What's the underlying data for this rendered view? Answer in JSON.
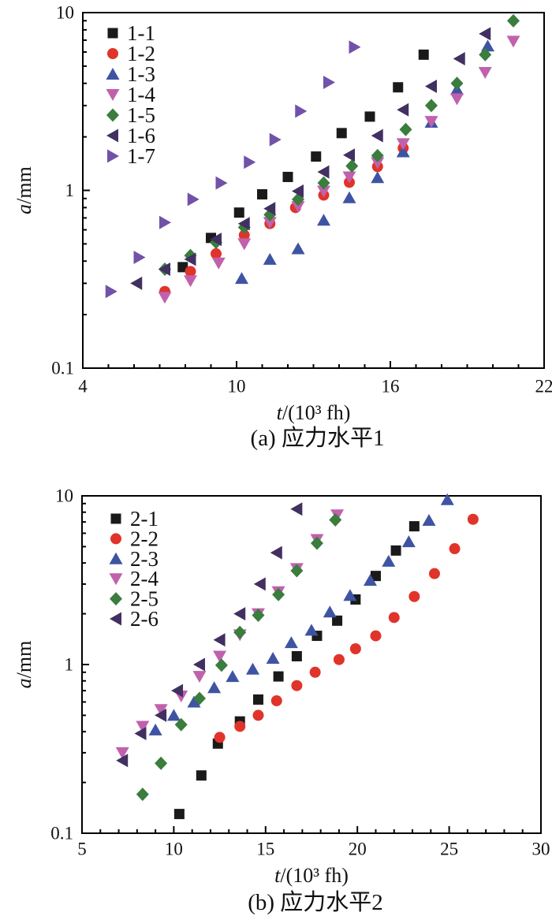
{
  "figure": {
    "background": "#ffffff",
    "axis_color": "#000000",
    "text_color": "#111111"
  },
  "chart_data": [
    {
      "type": "scatter",
      "panel": "a",
      "title": "(a) 应力水平1",
      "xlabel": "t/(10³ fh)",
      "xlabel_parts": [
        [
          "t",
          true
        ],
        [
          "/(10³ fh)",
          false
        ]
      ],
      "ylabel": "a/mm",
      "ylabel_parts": [
        [
          "a",
          true
        ],
        [
          "/mm",
          false
        ]
      ],
      "xscale": "linear",
      "yscale": "log",
      "xlim": [
        4,
        22
      ],
      "ylim": [
        0.1,
        10
      ],
      "x_major_ticks": [
        4,
        10,
        16,
        22
      ],
      "x_minor_step": 1,
      "y_major_ticks": [
        0.1,
        1,
        10
      ],
      "y_tick_labels": [
        "0.1",
        "1",
        "10"
      ],
      "grid": false,
      "legend_position": "top-left",
      "series": [
        {
          "name": "1-1",
          "marker": "square",
          "color": "#1a1a1a",
          "points": [
            [
              7.9,
              0.37
            ],
            [
              9.0,
              0.54
            ],
            [
              10.1,
              0.75
            ],
            [
              11.0,
              0.95
            ],
            [
              12.0,
              1.19
            ],
            [
              13.1,
              1.55
            ],
            [
              14.1,
              2.1
            ],
            [
              15.2,
              2.6
            ],
            [
              16.3,
              3.8
            ],
            [
              17.3,
              5.8
            ]
          ]
        },
        {
          "name": "1-2",
          "marker": "circle",
          "color": "#e0342b",
          "points": [
            [
              7.2,
              0.27
            ],
            [
              8.2,
              0.35
            ],
            [
              9.2,
              0.44
            ],
            [
              10.3,
              0.56
            ],
            [
              11.3,
              0.65
            ],
            [
              12.3,
              0.8
            ],
            [
              13.4,
              0.94
            ],
            [
              14.4,
              1.11
            ],
            [
              15.5,
              1.36
            ],
            [
              16.5,
              1.73
            ]
          ]
        },
        {
          "name": "1-3",
          "marker": "triangle-up",
          "color": "#3e54a3",
          "points": [
            [
              10.2,
              0.32
            ],
            [
              11.3,
              0.41
            ],
            [
              12.4,
              0.47
            ],
            [
              13.4,
              0.68
            ],
            [
              14.4,
              0.91
            ],
            [
              15.5,
              1.18
            ],
            [
              16.5,
              1.65
            ],
            [
              17.6,
              2.42
            ],
            [
              18.6,
              3.7
            ],
            [
              19.8,
              6.5
            ]
          ]
        },
        {
          "name": "1-4",
          "marker": "triangle-down",
          "color": "#c161ad",
          "points": [
            [
              7.2,
              0.25
            ],
            [
              8.2,
              0.31
            ],
            [
              9.3,
              0.39
            ],
            [
              10.3,
              0.5
            ],
            [
              11.3,
              0.66
            ],
            [
              12.4,
              0.81
            ],
            [
              13.4,
              0.99
            ],
            [
              14.4,
              1.19
            ],
            [
              15.5,
              1.43
            ],
            [
              16.5,
              1.83
            ],
            [
              17.6,
              2.44
            ],
            [
              18.6,
              3.27
            ],
            [
              19.7,
              4.6
            ],
            [
              20.8,
              6.9
            ]
          ]
        },
        {
          "name": "1-5",
          "marker": "diamond",
          "color": "#3a7d3d",
          "points": [
            [
              7.2,
              0.36
            ],
            [
              8.2,
              0.43
            ],
            [
              9.2,
              0.51
            ],
            [
              10.3,
              0.62
            ],
            [
              11.3,
              0.73
            ],
            [
              12.4,
              0.89
            ],
            [
              13.4,
              1.1
            ],
            [
              14.5,
              1.37
            ],
            [
              15.5,
              1.57
            ],
            [
              16.6,
              2.2
            ],
            [
              17.6,
              3.0
            ],
            [
              18.6,
              4.0
            ],
            [
              19.7,
              5.8
            ],
            [
              20.8,
              9.0
            ]
          ]
        },
        {
          "name": "1-6",
          "marker": "triangle-left",
          "color": "#423061",
          "points": [
            [
              6.1,
              0.3
            ],
            [
              7.2,
              0.36
            ],
            [
              8.2,
              0.41
            ],
            [
              9.2,
              0.53
            ],
            [
              10.3,
              0.65
            ],
            [
              11.3,
              0.79
            ],
            [
              12.4,
              0.99
            ],
            [
              13.4,
              1.27
            ],
            [
              14.4,
              1.58
            ],
            [
              15.5,
              2.03
            ],
            [
              16.5,
              2.84
            ],
            [
              17.6,
              3.85
            ],
            [
              18.7,
              5.5
            ],
            [
              19.7,
              7.6
            ]
          ]
        },
        {
          "name": "1-7",
          "marker": "triangle-right",
          "color": "#7152a8",
          "points": [
            [
              5.1,
              0.27
            ],
            [
              6.2,
              0.42
            ],
            [
              7.2,
              0.66
            ],
            [
              8.3,
              0.89
            ],
            [
              9.4,
              1.1
            ],
            [
              10.5,
              1.44
            ],
            [
              11.5,
              1.93
            ],
            [
              12.5,
              2.79
            ],
            [
              13.6,
              4.05
            ],
            [
              14.6,
              6.4
            ]
          ]
        }
      ]
    },
    {
      "type": "scatter",
      "panel": "b",
      "title": "(b) 应力水平2",
      "xlabel": "t/(10³ fh)",
      "xlabel_parts": [
        [
          "t",
          true
        ],
        [
          "/(10³ fh)",
          false
        ]
      ],
      "ylabel": "a/mm",
      "ylabel_parts": [
        [
          "a",
          true
        ],
        [
          "/mm",
          false
        ]
      ],
      "xscale": "linear",
      "yscale": "log",
      "xlim": [
        5,
        30
      ],
      "ylim": [
        0.1,
        10
      ],
      "x_major_ticks": [
        5,
        10,
        15,
        20,
        25,
        30
      ],
      "x_minor_step": 1,
      "y_major_ticks": [
        0.1,
        1,
        10
      ],
      "y_tick_labels": [
        "0.1",
        "1",
        "10"
      ],
      "grid": false,
      "legend_position": "top-left",
      "series": [
        {
          "name": "2-1",
          "marker": "square",
          "color": "#1a1a1a",
          "points": [
            [
              10.3,
              0.13
            ],
            [
              11.5,
              0.22
            ],
            [
              12.4,
              0.34
            ],
            [
              13.6,
              0.46
            ],
            [
              14.6,
              0.62
            ],
            [
              15.7,
              0.85
            ],
            [
              16.7,
              1.12
            ],
            [
              17.8,
              1.48
            ],
            [
              18.9,
              1.82
            ],
            [
              19.9,
              2.43
            ],
            [
              21.0,
              3.35
            ],
            [
              22.1,
              4.74
            ],
            [
              23.1,
              6.6
            ]
          ]
        },
        {
          "name": "2-2",
          "marker": "circle",
          "color": "#e0342b",
          "points": [
            [
              12.5,
              0.37
            ],
            [
              13.6,
              0.43
            ],
            [
              14.6,
              0.5
            ],
            [
              15.6,
              0.61
            ],
            [
              16.7,
              0.75
            ],
            [
              17.7,
              0.9
            ],
            [
              19.0,
              1.07
            ],
            [
              19.9,
              1.24
            ],
            [
              21.0,
              1.48
            ],
            [
              22.0,
              1.9
            ],
            [
              23.1,
              2.53
            ],
            [
              24.2,
              3.46
            ],
            [
              25.3,
              4.86
            ],
            [
              26.3,
              7.26
            ]
          ]
        },
        {
          "name": "2-3",
          "marker": "triangle-up",
          "color": "#3e54a3",
          "points": [
            [
              9.0,
              0.41
            ],
            [
              10.0,
              0.5
            ],
            [
              11.1,
              0.6
            ],
            [
              12.2,
              0.73
            ],
            [
              13.2,
              0.85
            ],
            [
              14.3,
              0.94
            ],
            [
              15.4,
              1.09
            ],
            [
              16.4,
              1.35
            ],
            [
              17.5,
              1.6
            ],
            [
              18.5,
              2.05
            ],
            [
              19.6,
              2.57
            ],
            [
              20.7,
              3.16
            ],
            [
              21.7,
              4.1
            ],
            [
              22.8,
              5.35
            ],
            [
              23.9,
              7.16
            ],
            [
              24.9,
              9.5
            ]
          ]
        },
        {
          "name": "2-4",
          "marker": "triangle-down",
          "color": "#c161ad",
          "points": [
            [
              7.2,
              0.3
            ],
            [
              8.3,
              0.43
            ],
            [
              9.3,
              0.54
            ],
            [
              10.4,
              0.65
            ],
            [
              11.4,
              0.85
            ],
            [
              12.5,
              1.12
            ],
            [
              13.6,
              1.5
            ],
            [
              14.6,
              2.0
            ],
            [
              15.7,
              2.7
            ],
            [
              16.7,
              3.7
            ],
            [
              17.8,
              5.5
            ],
            [
              18.9,
              7.7
            ]
          ]
        },
        {
          "name": "2-5",
          "marker": "diamond",
          "color": "#3a7d3d",
          "points": [
            [
              8.3,
              0.17
            ],
            [
              9.3,
              0.26
            ],
            [
              10.4,
              0.44
            ],
            [
              11.4,
              0.63
            ],
            [
              12.6,
              0.99
            ],
            [
              13.6,
              1.55
            ],
            [
              14.6,
              1.96
            ],
            [
              15.7,
              2.6
            ],
            [
              16.7,
              3.6
            ],
            [
              17.8,
              5.24
            ],
            [
              18.8,
              7.2
            ]
          ]
        },
        {
          "name": "2-6",
          "marker": "triangle-left",
          "color": "#423061",
          "points": [
            [
              7.2,
              0.27
            ],
            [
              8.2,
              0.39
            ],
            [
              9.3,
              0.5
            ],
            [
              10.2,
              0.7
            ],
            [
              11.4,
              1.0
            ],
            [
              12.5,
              1.4
            ],
            [
              13.6,
              2.0
            ],
            [
              14.7,
              3.0
            ],
            [
              15.6,
              4.6
            ],
            [
              16.7,
              8.35
            ]
          ]
        }
      ]
    }
  ]
}
